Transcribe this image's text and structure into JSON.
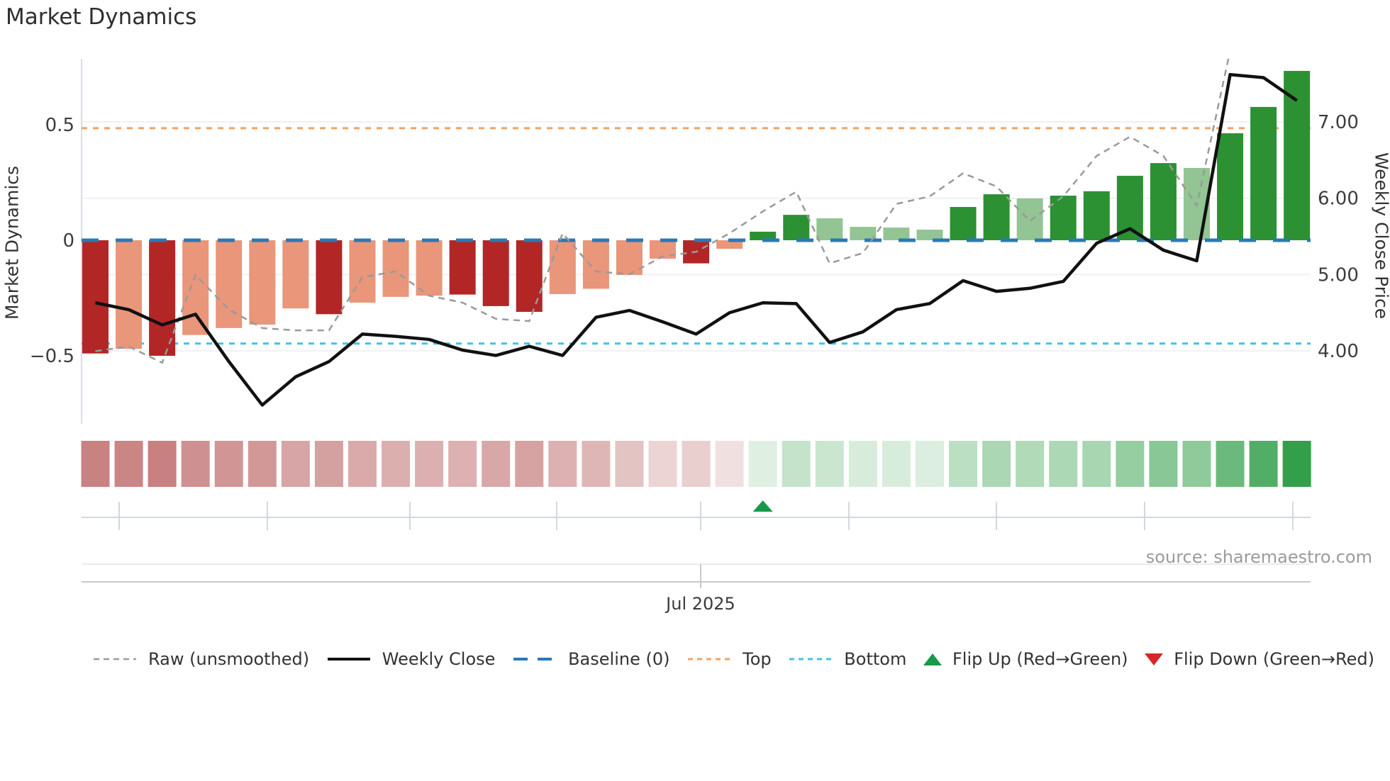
{
  "title": "Market Dynamics",
  "source_note": "source: sharemaestro.com",
  "palette": {
    "strong_red": "#b22626",
    "weak_red": "#e9967a",
    "strong_green": "#2b9132",
    "weak_green": "#93c493",
    "baseline_blue": "#2979b8",
    "top_orange": "#f2a263",
    "bottom_cyan": "#41c2ea",
    "raw_gray": "#9a9a9a",
    "close_black": "#111111",
    "flip_up_green": "#169a4a",
    "flip_down_red": "#d62828",
    "heat_red_end": "#c47878",
    "heat_green_end": "#2f9e47",
    "grid": "#eef1f5",
    "spine": "#d9dde3",
    "minor_axis": "#d4d8de",
    "bottom_axis": "#c4c9d0"
  },
  "chart_data": {
    "type": "bar",
    "title": "Market Dynamics",
    "ylabel_left": "Market Dynamics",
    "ylabel_right": "Weekly Close Price",
    "x_tick_label": "Jul 2025",
    "x_axis_note": "weekly bars, Mar-Nov 2025, only Jul 2025 labeled",
    "ylim_left": [
      -0.79,
      0.785
    ],
    "ylim_right": [
      3.05,
      7.83
    ],
    "grid": "faint horizontal lines at right-axis ticks",
    "legend_position": "bottom row",
    "left_ticks": [
      {
        "label": "0.5",
        "value": 0.5
      },
      {
        "label": "0",
        "value": 0
      },
      {
        "label": "−0.5",
        "value": -0.5
      }
    ],
    "right_ticks": [
      {
        "label": "7.00",
        "value": 7.0
      },
      {
        "label": "6.00",
        "value": 6.0
      },
      {
        "label": "5.00",
        "value": 5.0
      },
      {
        "label": "4.00",
        "value": 4.0
      }
    ],
    "baseline_value": 0,
    "top_line_value": 0.485,
    "bottom_line_value": -0.447,
    "month_tick_x": [
      168,
      377,
      578,
      785,
      988,
      1197,
      1405,
      1614,
      1823
    ],
    "jul_tick_x": 988,
    "flip_up_index": 20,
    "flip_down_index": null,
    "series": [
      {
        "name": "Dynamics (smoothed bars)",
        "values": [
          -0.49,
          -0.47,
          -0.5,
          -0.41,
          -0.38,
          -0.365,
          -0.295,
          -0.32,
          -0.27,
          -0.245,
          -0.24,
          -0.235,
          -0.285,
          -0.31,
          -0.233,
          -0.21,
          -0.15,
          -0.08,
          -0.1,
          -0.037,
          0.037,
          0.11,
          0.095,
          0.058,
          0.055,
          0.046,
          0.144,
          0.199,
          0.181,
          0.193,
          0.212,
          0.279,
          0.334,
          0.313,
          0.463,
          0.577,
          0.733
        ],
        "bar_tone": [
          "R",
          "r",
          "R",
          "r",
          "r",
          "r",
          "r",
          "R",
          "r",
          "r",
          "r",
          "R",
          "R",
          "R",
          "r",
          "r",
          "r",
          "r",
          "R",
          "r",
          "G",
          "G",
          "g",
          "g",
          "g",
          "g",
          "G",
          "G",
          "g",
          "G",
          "G",
          "G",
          "G",
          "g",
          "G",
          "G",
          "G"
        ]
      },
      {
        "name": "Raw (unsmoothed)",
        "values": [
          -0.48,
          -0.46,
          -0.53,
          -0.15,
          -0.3,
          -0.38,
          -0.39,
          -0.39,
          -0.16,
          -0.135,
          -0.24,
          -0.27,
          -0.34,
          -0.35,
          0.03,
          -0.135,
          -0.147,
          -0.07,
          -0.05,
          0.03,
          0.125,
          0.21,
          -0.1,
          -0.055,
          0.157,
          0.19,
          0.29,
          0.233,
          0.083,
          0.19,
          0.365,
          0.448,
          0.365,
          0.15,
          0.82,
          0.9,
          0.85
        ]
      },
      {
        "name": "Weekly Close",
        "values": [
          4.63,
          4.54,
          4.34,
          4.48,
          3.86,
          3.29,
          3.66,
          3.86,
          4.22,
          4.19,
          4.15,
          4.01,
          3.94,
          4.06,
          3.94,
          4.44,
          4.53,
          4.38,
          4.22,
          4.5,
          4.63,
          4.62,
          4.11,
          4.25,
          4.54,
          4.62,
          4.92,
          4.78,
          4.82,
          4.91,
          5.41,
          5.6,
          5.32,
          5.18,
          7.62,
          7.58,
          7.28
        ]
      }
    ]
  },
  "legend": {
    "items": [
      {
        "label": "Raw (unsmoothed)"
      },
      {
        "label": "Weekly Close"
      },
      {
        "label": "Baseline (0)"
      },
      {
        "label": "Top"
      },
      {
        "label": "Bottom"
      },
      {
        "label": "Flip Up (Red→Green)"
      },
      {
        "label": "Flip Down (Green→Red)"
      }
    ]
  }
}
